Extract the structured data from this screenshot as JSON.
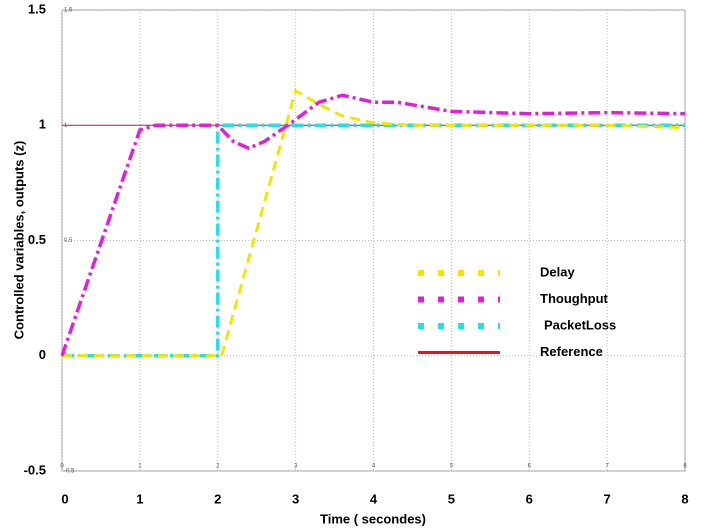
{
  "chart_data": {
    "type": "line",
    "xlabel": "Time ( secondes)",
    "ylabel": "Controlled variables, outputs (z)",
    "xlim": [
      0,
      8
    ],
    "xticks": [
      0,
      1,
      2,
      3,
      4,
      5,
      6,
      7,
      8
    ],
    "ylim": [
      -0.5,
      1.5
    ],
    "yticks": [
      1.5,
      1,
      0.5,
      0,
      -0.5
    ],
    "grid": true,
    "legend": "center right",
    "series": [
      {
        "name": "Reference",
        "color": "#e8141b",
        "style": "solid",
        "x": [
          0,
          8
        ],
        "values": [
          1,
          1
        ]
      },
      {
        "name": "PacketLoss",
        "color": "#22e0ea",
        "style": "dash-dot",
        "x": [
          0,
          2,
          2,
          8
        ],
        "values": [
          0,
          0,
          1,
          1
        ]
      },
      {
        "name": "Delay",
        "color": "#f2e600",
        "style": "dashed",
        "x": [
          0,
          2.05,
          3,
          3.3,
          3.6,
          4,
          4.5,
          5,
          6,
          7,
          8
        ],
        "values": [
          0,
          0,
          1.15,
          1.09,
          1.04,
          1.01,
          1.0,
          1.0,
          1.0,
          1.0,
          0.99
        ]
      },
      {
        "name": "Thoughput",
        "color": "#e020d8",
        "style": "dash-dot",
        "x": [
          0,
          1,
          1.2,
          2,
          2.2,
          2.4,
          2.6,
          2.9,
          3.3,
          3.6,
          4,
          4.3,
          5,
          6,
          7,
          8
        ],
        "values": [
          0,
          0.98,
          1.0,
          1.0,
          0.93,
          0.9,
          0.93,
          1.0,
          1.1,
          1.13,
          1.1,
          1.1,
          1.06,
          1.05,
          1.055,
          1.05
        ]
      }
    ]
  }
}
